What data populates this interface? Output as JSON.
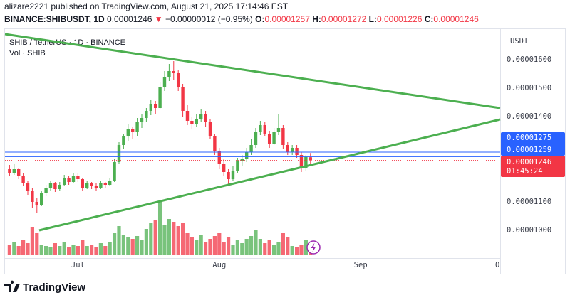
{
  "header": {
    "line1": "alizare2221 published on TradingView.com, August 21, 2025 17:14:46 EST",
    "symbol": "BINANCE:SHIBUSDT, 1D",
    "price": "0.00001246",
    "arrow": "▼",
    "change": "−0.00000012 (−0.95%)",
    "ohlc": [
      {
        "key": "O:",
        "value": "0.00001257"
      },
      {
        "key": "H:",
        "value": "0.00001272"
      },
      {
        "key": "L:",
        "value": "0.00001226"
      },
      {
        "key": "C:",
        "value": "0.00001246"
      }
    ]
  },
  "footer": {
    "brand": "TradingView"
  },
  "chart_data": {
    "type": "candlestick",
    "title": "SHIB / TetherUS · 1D · BINANCE",
    "y_unit": "USDT",
    "up_color": "#4caf50",
    "down_color": "#f23645",
    "xlim": [
      166,
      274.6
    ],
    "xticks": [
      {
        "value": 182,
        "label": "Jul"
      },
      {
        "value": 213,
        "label": "Aug"
      },
      {
        "value": 244,
        "label": "Sep"
      },
      {
        "value": 274,
        "label": "O"
      }
    ],
    "ylim": [
      9.1e-06,
      1.71e-05
    ],
    "yticks": [
      {
        "value": 1.6e-05,
        "label": "0.00001600"
      },
      {
        "value": 1.5e-05,
        "label": "0.00001500"
      },
      {
        "value": 1.4e-05,
        "label": "0.00001400"
      },
      {
        "value": 1.1e-05,
        "label": "0.00001100"
      },
      {
        "value": 1e-05,
        "label": "0.00001000"
      }
    ],
    "x": [
      167,
      168,
      169,
      170,
      171,
      172,
      173,
      174,
      175,
      176,
      177,
      178,
      179,
      180,
      181,
      182,
      183,
      184,
      185,
      186,
      187,
      188,
      189,
      190,
      191,
      192,
      193,
      194,
      195,
      196,
      197,
      198,
      199,
      200,
      201,
      202,
      203,
      204,
      205,
      206,
      207,
      208,
      209,
      210,
      211,
      212,
      213,
      214,
      215,
      216,
      217,
      218,
      219,
      220,
      221,
      222,
      223,
      224,
      225,
      226,
      227,
      228,
      229,
      230,
      231,
      232,
      233
    ],
    "candles": [
      [
        1.215e-05,
        1.23e-05,
        1.19e-05,
        1.2e-05
      ],
      [
        1.2e-05,
        1.235e-05,
        1.195e-05,
        1.215e-05
      ],
      [
        1.215e-05,
        1.22e-05,
        1.18e-05,
        1.19e-05
      ],
      [
        1.19e-05,
        1.2e-05,
        1.155e-05,
        1.165e-05
      ],
      [
        1.165e-05,
        1.175e-05,
        1.125e-05,
        1.14e-05
      ],
      [
        1.14e-05,
        1.15e-05,
        1.08e-05,
        1.1e-05
      ],
      [
        1.1e-05,
        1.115e-05,
        1.06e-05,
        1.09e-05
      ],
      [
        1.09e-05,
        1.14e-05,
        1.085e-05,
        1.13e-05
      ],
      [
        1.13e-05,
        1.16e-05,
        1.12e-05,
        1.15e-05
      ],
      [
        1.15e-05,
        1.175e-05,
        1.14e-05,
        1.165e-05
      ],
      [
        1.165e-05,
        1.17e-05,
        1.135e-05,
        1.145e-05
      ],
      [
        1.145e-05,
        1.17e-05,
        1.14e-05,
        1.16e-05
      ],
      [
        1.16e-05,
        1.195e-05,
        1.155e-05,
        1.185e-05
      ],
      [
        1.185e-05,
        1.19e-05,
        1.16e-05,
        1.17e-05
      ],
      [
        1.17e-05,
        1.2e-05,
        1.165e-05,
        1.19e-05
      ],
      [
        1.19e-05,
        1.2e-05,
        1.17e-05,
        1.18e-05
      ],
      [
        1.18e-05,
        1.185e-05,
        1.14e-05,
        1.15e-05
      ],
      [
        1.15e-05,
        1.175e-05,
        1.145e-05,
        1.165e-05
      ],
      [
        1.165e-05,
        1.17e-05,
        1.145e-05,
        1.155e-05
      ],
      [
        1.155e-05,
        1.165e-05,
        1.14e-05,
        1.15e-05
      ],
      [
        1.15e-05,
        1.175e-05,
        1.145e-05,
        1.165e-05
      ],
      [
        1.165e-05,
        1.17e-05,
        1.15e-05,
        1.16e-05
      ],
      [
        1.16e-05,
        1.185e-05,
        1.155e-05,
        1.175e-05
      ],
      [
        1.175e-05,
        1.25e-05,
        1.17e-05,
        1.24e-05
      ],
      [
        1.24e-05,
        1.31e-05,
        1.235e-05,
        1.3e-05
      ],
      [
        1.3e-05,
        1.34e-05,
        1.285e-05,
        1.33e-05
      ],
      [
        1.33e-05,
        1.375e-05,
        1.315e-05,
        1.355e-05
      ],
      [
        1.355e-05,
        1.365e-05,
        1.32e-05,
        1.345e-05
      ],
      [
        1.345e-05,
        1.395e-05,
        1.33e-05,
        1.38e-05
      ],
      [
        1.38e-05,
        1.41e-05,
        1.36e-05,
        1.395e-05
      ],
      [
        1.395e-05,
        1.43e-05,
        1.38e-05,
        1.42e-05
      ],
      [
        1.42e-05,
        1.46e-05,
        1.405e-05,
        1.445e-05
      ],
      [
        1.445e-05,
        1.455e-05,
        1.41e-05,
        1.43e-05
      ],
      [
        1.43e-05,
        1.52e-05,
        1.425e-05,
        1.505e-05
      ],
      [
        1.505e-05,
        1.56e-05,
        1.49e-05,
        1.54e-05
      ],
      [
        1.54e-05,
        1.585e-05,
        1.525e-05,
        1.56e-05
      ],
      [
        1.56e-05,
        1.595e-05,
        1.53e-05,
        1.555e-05
      ],
      [
        1.555e-05,
        1.565e-05,
        1.49e-05,
        1.505e-05
      ],
      [
        1.505e-05,
        1.515e-05,
        1.4e-05,
        1.42e-05
      ],
      [
        1.42e-05,
        1.44e-05,
        1.37e-05,
        1.385e-05
      ],
      [
        1.385e-05,
        1.4e-05,
        1.355e-05,
        1.375e-05
      ],
      [
        1.375e-05,
        1.41e-05,
        1.365e-05,
        1.39e-05
      ],
      [
        1.39e-05,
        1.425e-05,
        1.38e-05,
        1.41e-05
      ],
      [
        1.41e-05,
        1.42e-05,
        1.365e-05,
        1.38e-05
      ],
      [
        1.38e-05,
        1.39e-05,
        1.32e-05,
        1.33e-05
      ],
      [
        1.33e-05,
        1.34e-05,
        1.265e-05,
        1.28e-05
      ],
      [
        1.28e-05,
        1.29e-05,
        1.215e-05,
        1.235e-05
      ],
      [
        1.235e-05,
        1.25e-05,
        1.19e-05,
        1.205e-05
      ],
      [
        1.205e-05,
        1.215e-05,
        1.16e-05,
        1.18e-05
      ],
      [
        1.18e-05,
        1.225e-05,
        1.175e-05,
        1.21e-05
      ],
      [
        1.21e-05,
        1.255e-05,
        1.2e-05,
        1.245e-05
      ],
      [
        1.245e-05,
        1.265e-05,
        1.225e-05,
        1.25e-05
      ],
      [
        1.25e-05,
        1.29e-05,
        1.24e-05,
        1.275e-05
      ],
      [
        1.275e-05,
        1.32e-05,
        1.265e-05,
        1.3e-05
      ],
      [
        1.3e-05,
        1.36e-05,
        1.29e-05,
        1.345e-05
      ],
      [
        1.345e-05,
        1.385e-05,
        1.335e-05,
        1.37e-05
      ],
      [
        1.37e-05,
        1.38e-05,
        1.33e-05,
        1.34e-05
      ],
      [
        1.34e-05,
        1.35e-05,
        1.29e-05,
        1.305e-05
      ],
      [
        1.305e-05,
        1.36e-05,
        1.3e-05,
        1.345e-05
      ],
      [
        1.345e-05,
        1.41e-05,
        1.335e-05,
        1.36e-05
      ],
      [
        1.36e-05,
        1.37e-05,
        1.285e-05,
        1.3e-05
      ],
      [
        1.3e-05,
        1.31e-05,
        1.265e-05,
        1.275e-05
      ],
      [
        1.275e-05,
        1.3e-05,
        1.265e-05,
        1.29e-05
      ],
      [
        1.29e-05,
        1.3e-05,
        1.255e-05,
        1.265e-05
      ],
      [
        1.265e-05,
        1.275e-05,
        1.205e-05,
        1.22e-05
      ],
      [
        1.22e-05,
        1.265e-05,
        1.21e-05,
        1.258e-05
      ],
      [
        1.257e-05,
        1.272e-05,
        1.226e-05,
        1.246e-05
      ]
    ],
    "volume": {
      "name": "Vol · SHIB",
      "values": [
        14,
        18,
        12,
        20,
        16,
        38,
        30,
        14,
        12,
        10,
        16,
        12,
        18,
        10,
        14,
        12,
        20,
        12,
        14,
        10,
        16,
        12,
        18,
        30,
        40,
        28,
        24,
        22,
        26,
        20,
        36,
        44,
        48,
        75,
        42,
        50,
        46,
        40,
        44,
        30,
        24,
        20,
        28,
        18,
        22,
        26,
        30,
        18,
        24,
        14,
        20,
        16,
        22,
        26,
        34,
        22,
        16,
        20,
        14,
        18,
        30,
        24,
        12,
        10,
        14,
        20,
        12
      ]
    },
    "trendlines": [
      {
        "x": [
          166,
          274.6
        ],
        "y": [
          1.69e-05,
          1.43e-05
        ],
        "color": "#4caf50"
      },
      {
        "x": [
          173.5,
          274.6
        ],
        "y": [
          1e-05,
          1.39e-05
        ],
        "color": "#4caf50"
      }
    ],
    "price_lines": [
      {
        "value": 1.275e-05,
        "label": "0.00001275",
        "color": "#2962ff"
      },
      {
        "value": 1.259e-05,
        "label": "0.00001259",
        "color": "#2962ff"
      },
      {
        "value": 1.246e-05,
        "label": "0.00001246",
        "color": "#f23645",
        "countdown": "01:45:24"
      }
    ]
  }
}
